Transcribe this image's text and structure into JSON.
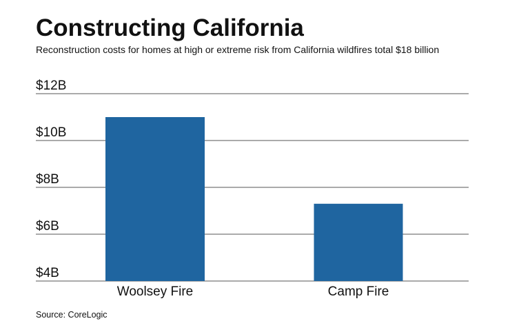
{
  "chart_data": {
    "type": "bar",
    "title": "Constructing California",
    "subtitle": "Reconstruction costs for homes at high or extreme risk from California wildfires total $18 billion",
    "categories": [
      "Woolsey Fire",
      "Camp Fire"
    ],
    "values": [
      11.0,
      7.3
    ],
    "color": "#1f65a0",
    "ylim": [
      4,
      12
    ],
    "yticks": [
      {
        "value": 4,
        "label": "$4B"
      },
      {
        "value": 6,
        "label": "$6B"
      },
      {
        "value": 8,
        "label": "$8B"
      },
      {
        "value": 10,
        "label": "$10B"
      },
      {
        "value": 12,
        "label": "$12B"
      }
    ],
    "grid": true,
    "source": "Source: CoreLogic"
  }
}
